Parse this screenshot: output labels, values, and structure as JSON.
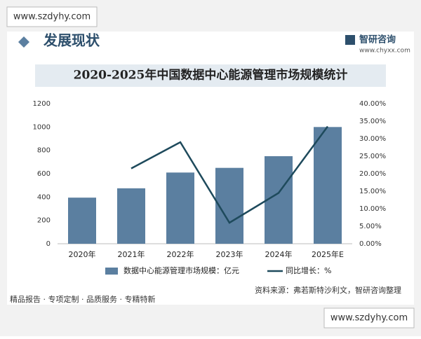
{
  "watermark_top": "www.szdyhy.com",
  "watermark_bottom": "www.szdyhy.com",
  "header": {
    "section": "发展现状",
    "brand": "智研咨询",
    "site": "www.chyxx.com"
  },
  "chart_data": {
    "type": "bar",
    "title": "2020-2025年中国数据中心能源管理市场规模统计",
    "categories": [
      "2020年",
      "2021年",
      "2022年",
      "2023年",
      "2024年",
      "2025年E"
    ],
    "series": [
      {
        "name": "数据中心能源管理市场规模：亿元",
        "type": "bar",
        "color": "#5b7fa0",
        "values": [
          395,
          475,
          610,
          650,
          750,
          1000
        ]
      },
      {
        "name": "同比增长：%",
        "type": "line",
        "axis": "y2",
        "color": "#1e4a5c",
        "values": [
          null,
          21.5,
          29,
          6,
          14.5,
          33.5
        ]
      }
    ],
    "ylim": [
      0,
      1200
    ],
    "yticks": [
      0,
      200,
      400,
      600,
      800,
      1000,
      1200
    ],
    "y2lim": [
      0,
      40
    ],
    "y2ticks": [
      {
        "value": 0,
        "label": "0.00%"
      },
      {
        "value": 5,
        "label": "5.00%"
      },
      {
        "value": 10,
        "label": "10.00%"
      },
      {
        "value": 15,
        "label": "15.00%"
      },
      {
        "value": 20,
        "label": "20.00%"
      },
      {
        "value": 25,
        "label": "25.00%"
      },
      {
        "value": 30,
        "label": "30.00%"
      },
      {
        "value": 35,
        "label": "35.00%"
      },
      {
        "value": 40,
        "label": "40.00%"
      }
    ],
    "legend": "bottom",
    "source": "资料来源：弗若斯特沙利文，智研咨询整理"
  },
  "footer": "精品报告 · 专项定制 · 品质服务 · 专精特新"
}
